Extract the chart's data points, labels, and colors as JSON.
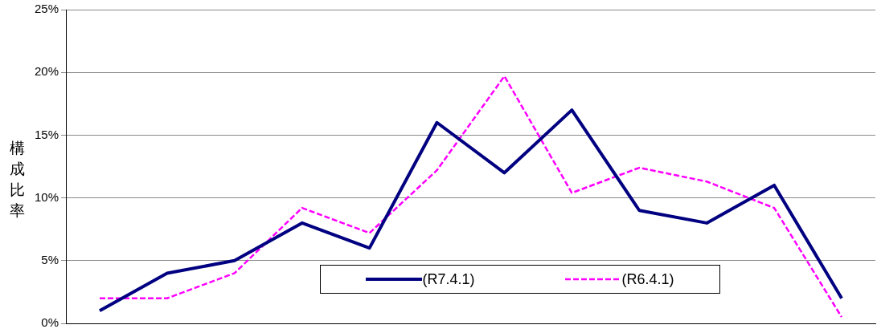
{
  "chart_data": {
    "type": "line",
    "ylabel": "構成比率",
    "categories": [
      null,
      null,
      null,
      null,
      null,
      null,
      null,
      null,
      null,
      null,
      null,
      null
    ],
    "series": [
      {
        "name": "(R7.4.1)",
        "color": "#000080",
        "line_style": "solid",
        "values": [
          1,
          4,
          5,
          8,
          6,
          16,
          12,
          17,
          9,
          8,
          11,
          2
        ]
      },
      {
        "name": "(R6.4.1)",
        "color": "#ff00ff",
        "line_style": "dashed",
        "values": [
          2,
          2,
          4,
          9.2,
          7.2,
          12.2,
          19.7,
          10.4,
          12.4,
          11.3,
          9.2,
          0.5
        ]
      }
    ],
    "ylim": [
      0,
      25
    ],
    "yticks": [
      {
        "value": 0,
        "label": "0%"
      },
      {
        "value": 5,
        "label": "5%"
      },
      {
        "value": 10,
        "label": "10%"
      },
      {
        "value": 15,
        "label": "15%"
      },
      {
        "value": 20,
        "label": "20%"
      },
      {
        "value": 25,
        "label": "25%"
      }
    ],
    "grid": "y",
    "legend": "bottom",
    "tick_labels": "y",
    "marker": "none"
  }
}
